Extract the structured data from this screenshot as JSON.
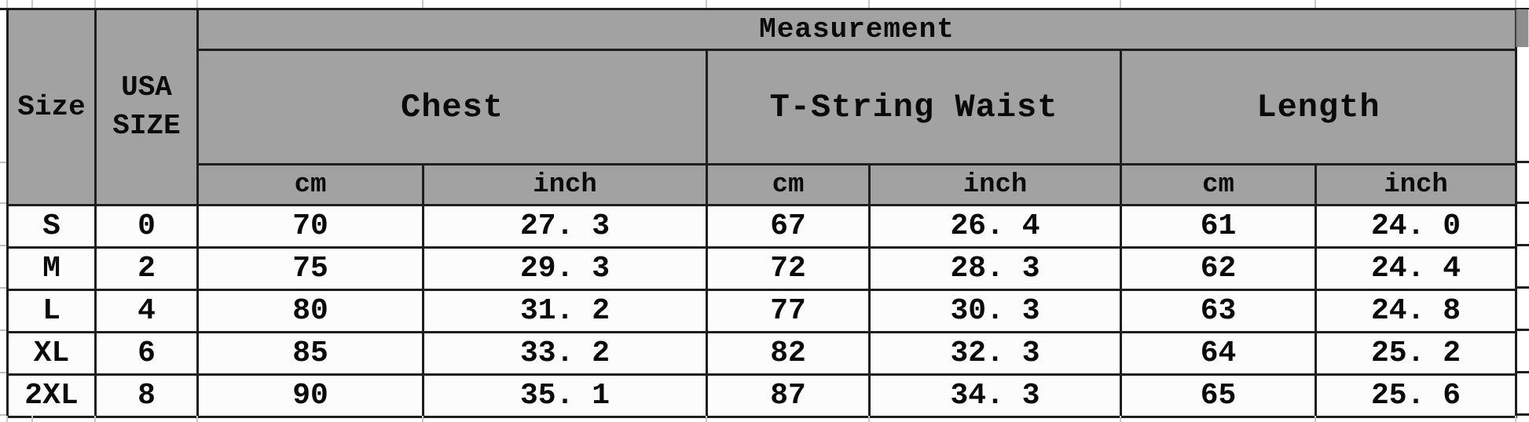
{
  "table": {
    "title_header": "Measurement",
    "corner_headers": {
      "size": "Size",
      "usa_size": "USA SIZE"
    },
    "groups": [
      {
        "label": "Chest"
      },
      {
        "label": "T-String Waist"
      },
      {
        "label": "Length"
      }
    ],
    "unit_headers": [
      "cm",
      "inch",
      "cm",
      "inch",
      "cm",
      "inch"
    ],
    "rows": [
      {
        "size": "S",
        "usa": "0",
        "cells": [
          "70",
          "27. 3",
          "67",
          "26. 4",
          "61",
          "24. 0"
        ]
      },
      {
        "size": "M",
        "usa": "2",
        "cells": [
          "75",
          "29. 3",
          "72",
          "28. 3",
          "62",
          "24. 4"
        ]
      },
      {
        "size": "L",
        "usa": "4",
        "cells": [
          "80",
          "31. 2",
          "77",
          "30. 3",
          "63",
          "24. 8"
        ]
      },
      {
        "size": "XL",
        "usa": "6",
        "cells": [
          "85",
          "33. 2",
          "82",
          "32. 3",
          "64",
          "25. 2"
        ]
      },
      {
        "size": "2XL",
        "usa": "8",
        "cells": [
          "90",
          "35. 1",
          "87",
          "34. 3",
          "65",
          "25. 6"
        ]
      }
    ],
    "colors": {
      "header_bg": "#a2a2a2",
      "border": "#1e1e1e",
      "row_bg": "#fcfcfc",
      "gridline": "#c9c9c9"
    }
  },
  "chart_data": {
    "type": "table",
    "title": "Measurement",
    "columns": [
      "Size",
      "USA SIZE",
      "Chest cm",
      "Chest inch",
      "T-String Waist cm",
      "T-String Waist inch",
      "Length cm",
      "Length inch"
    ],
    "rows": [
      [
        "S",
        0,
        70,
        27.3,
        67,
        26.4,
        61,
        24.0
      ],
      [
        "M",
        2,
        75,
        29.3,
        72,
        28.3,
        62,
        24.4
      ],
      [
        "L",
        4,
        80,
        31.2,
        77,
        30.3,
        63,
        24.8
      ],
      [
        "XL",
        6,
        85,
        33.2,
        82,
        32.3,
        64,
        25.2
      ],
      [
        "2XL",
        8,
        90,
        35.1,
        87,
        34.3,
        65,
        25.6
      ]
    ]
  }
}
